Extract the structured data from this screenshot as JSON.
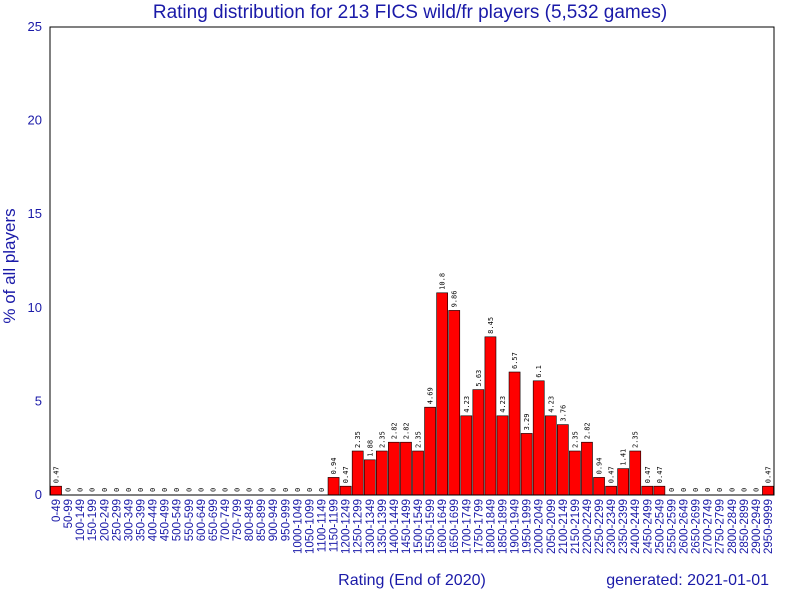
{
  "chart_data": {
    "type": "bar",
    "title": "Rating distribution for 213 FICS wild/fr players (5,532 games)",
    "xlabel": "Rating (End of 2020)",
    "ylabel": "% of all players",
    "generated": "generated: 2021-01-01",
    "ylim": [
      0,
      25
    ],
    "yticks": [
      "0",
      "5",
      "10",
      "15",
      "20",
      "25"
    ],
    "grid": false,
    "bar_color": "#ff0000",
    "categories": [
      "0-49",
      "50-99",
      "100-149",
      "150-199",
      "200-249",
      "250-299",
      "300-349",
      "350-399",
      "400-449",
      "450-499",
      "500-549",
      "550-599",
      "600-649",
      "650-699",
      "700-749",
      "750-799",
      "800-849",
      "850-899",
      "900-949",
      "950-999",
      "1000-1049",
      "1050-1099",
      "1100-1149",
      "1150-1199",
      "1200-1249",
      "1250-1299",
      "1300-1349",
      "1350-1399",
      "1400-1449",
      "1450-1499",
      "1500-1549",
      "1550-1599",
      "1600-1649",
      "1650-1699",
      "1700-1749",
      "1750-1799",
      "1800-1849",
      "1850-1899",
      "1900-1949",
      "1950-1999",
      "2000-2049",
      "2050-2099",
      "2100-2149",
      "2150-2199",
      "2200-2249",
      "2250-2299",
      "2300-2349",
      "2350-2399",
      "2400-2449",
      "2450-2499",
      "2500-2549",
      "2550-2599",
      "2600-2649",
      "2650-2699",
      "2700-2749",
      "2750-2799",
      "2800-2849",
      "2850-2899",
      "2900-2949",
      "2950-9999"
    ],
    "values": [
      0.47,
      0,
      0,
      0,
      0,
      0,
      0,
      0,
      0,
      0,
      0,
      0,
      0,
      0,
      0,
      0,
      0,
      0,
      0,
      0,
      0,
      0,
      0,
      0.94,
      0.47,
      2.35,
      1.88,
      2.35,
      2.82,
      2.82,
      2.35,
      4.69,
      10.8,
      9.86,
      4.23,
      5.63,
      8.45,
      4.23,
      6.57,
      3.29,
      6.1,
      4.23,
      3.76,
      2.35,
      2.82,
      0.94,
      0.47,
      1.41,
      2.35,
      0.47,
      0.47,
      0,
      0,
      0,
      0,
      0,
      0,
      0,
      0,
      0.47
    ],
    "value_labels": [
      "0.47",
      "0",
      "0",
      "0",
      "0",
      "0",
      "0",
      "0",
      "0",
      "0",
      "0",
      "0",
      "0",
      "0",
      "0",
      "0",
      "0",
      "0",
      "0",
      "0",
      "0",
      "0",
      "0",
      "0.94",
      "0.47",
      "2.35",
      "1.88",
      "2.35",
      "2.82",
      "2.82",
      "2.35",
      "4.69",
      "10.8",
      "9.86",
      "4.23",
      "5.63",
      "8.45",
      "4.23",
      "6.57",
      "3.29",
      "6.1",
      "4.23",
      "3.76",
      "2.35",
      "2.82",
      "0.94",
      "0.47",
      "1.41",
      "2.35",
      "0.47",
      "0.47",
      "0",
      "0",
      "0",
      "0",
      "0",
      "0",
      "0",
      "0",
      "0.47"
    ]
  }
}
